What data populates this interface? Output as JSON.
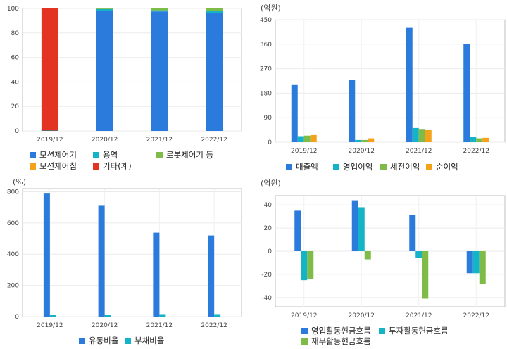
{
  "chart_data": [
    {
      "type": "bar",
      "stacked": true,
      "unit": "",
      "categories": [
        "2019/12",
        "2020/12",
        "2021/12",
        "2022/12"
      ],
      "ylim": [
        0,
        100
      ],
      "yticks": [
        0,
        20,
        40,
        60,
        80,
        100
      ],
      "series": [
        {
          "name": "모션제어기",
          "color": "#2b7bdc",
          "values": [
            0,
            98,
            97.5,
            96.5
          ]
        },
        {
          "name": "용역",
          "color": "#14b4c6",
          "values": [
            0,
            1.5,
            1,
            1.5
          ]
        },
        {
          "name": "로봇제어기 등",
          "color": "#7fbb47",
          "values": [
            0,
            0.5,
            1.5,
            2
          ]
        },
        {
          "name": "모션제어칩",
          "color": "#f5a21b",
          "values": [
            0,
            0,
            0,
            0
          ]
        },
        {
          "name": "기타(계)",
          "color": "#e23323",
          "values": [
            100,
            0,
            0,
            0
          ]
        }
      ],
      "grid": true,
      "legend_position": "bottom"
    },
    {
      "type": "bar",
      "unit": "(억원)",
      "categories": [
        "2019/12",
        "2020/12",
        "2021/12",
        "2022/12"
      ],
      "ylim": [
        0,
        450
      ],
      "yticks": [
        0,
        90,
        180,
        270,
        360,
        450
      ],
      "series": [
        {
          "name": "매출액",
          "color": "#2b7bdc",
          "values": [
            210,
            228,
            420,
            360
          ]
        },
        {
          "name": "영업이익",
          "color": "#14b4c6",
          "values": [
            22,
            8,
            52,
            20
          ]
        },
        {
          "name": "세전이익",
          "color": "#7fbb47",
          "values": [
            24,
            8,
            46,
            14
          ]
        },
        {
          "name": "순이익",
          "color": "#f5a21b",
          "values": [
            26,
            14,
            44,
            16
          ]
        }
      ],
      "grid": true,
      "legend_position": "bottom"
    },
    {
      "type": "bar",
      "unit": "(%)",
      "categories": [
        "2019/12",
        "2020/12",
        "2021/12",
        "2022/12"
      ],
      "ylim": [
        0,
        820
      ],
      "yticks": [
        0,
        200,
        400,
        600,
        800
      ],
      "series": [
        {
          "name": "유동비율",
          "color": "#2b7bdc",
          "values": [
            788,
            710,
            538,
            520
          ]
        },
        {
          "name": "부채비율",
          "color": "#14b4c6",
          "values": [
            12,
            12,
            16,
            16
          ]
        }
      ],
      "grid": true,
      "legend_position": "bottom"
    },
    {
      "type": "bar",
      "unit": "(억원)",
      "categories": [
        "2019/12",
        "2020/12",
        "2021/12",
        "2022/12"
      ],
      "ylim": [
        -48,
        48
      ],
      "yticks": [
        -40,
        -20,
        0,
        20,
        40
      ],
      "series": [
        {
          "name": "영업활동현금흐름",
          "color": "#2b7bdc",
          "values": [
            35,
            44,
            31,
            -19
          ]
        },
        {
          "name": "투자활동현금흐름",
          "color": "#14b4c6",
          "values": [
            -25,
            38,
            -6,
            -19
          ]
        },
        {
          "name": "재무활동현금흐름",
          "color": "#7fbb47",
          "values": [
            -24,
            -7,
            -41,
            -28
          ]
        }
      ],
      "grid": true,
      "legend_position": "bottom"
    }
  ]
}
